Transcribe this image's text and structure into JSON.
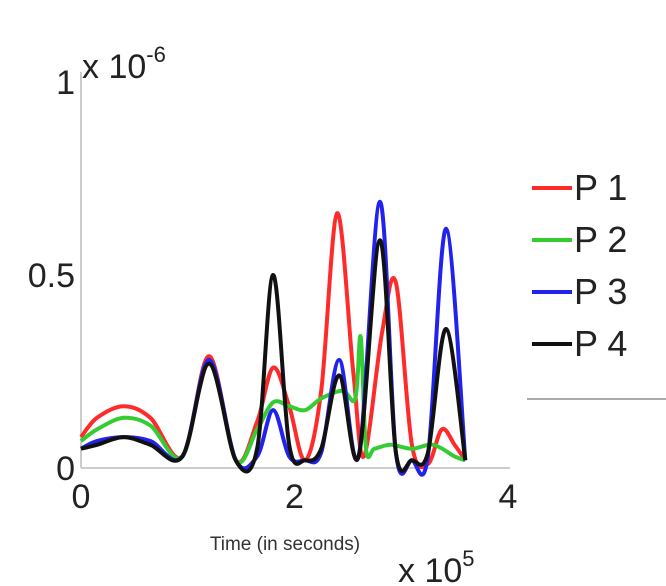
{
  "chart_data": {
    "type": "line",
    "xlabel": "Time (in seconds)",
    "ylabel": "",
    "x_multiplier": {
      "base": "x 10",
      "exp": "5"
    },
    "y_multiplier": {
      "base": "x 10",
      "exp": "-6"
    },
    "xlim": [
      0,
      4
    ],
    "ylim": [
      0,
      1
    ],
    "x_ticks": [
      {
        "value": 0,
        "label": "0"
      },
      {
        "value": 2,
        "label": "2"
      },
      {
        "value": 4,
        "label": "4"
      }
    ],
    "y_ticks": [
      {
        "value": 0,
        "label": "0"
      },
      {
        "value": 0.5,
        "label": "0.5"
      },
      {
        "value": 1,
        "label": "1"
      }
    ],
    "grid": false,
    "legend_position": "right",
    "series": [
      {
        "name": "P 1",
        "color": "#ff2b2b",
        "x": [
          0,
          0.15,
          0.4,
          0.65,
          0.95,
          1.2,
          1.45,
          1.65,
          1.8,
          1.95,
          2.1,
          2.25,
          2.4,
          2.55,
          2.65,
          2.82,
          2.95,
          3.1,
          3.25,
          3.38,
          3.5,
          3.6
        ],
        "y": [
          0.08,
          0.13,
          0.16,
          0.13,
          0.03,
          0.29,
          0.02,
          0.12,
          0.26,
          0.16,
          0.02,
          0.2,
          0.66,
          0.25,
          0.03,
          0.35,
          0.48,
          0.06,
          0.01,
          0.1,
          0.06,
          0.02
        ]
      },
      {
        "name": "P 2",
        "color": "#33cc33",
        "x": [
          0,
          0.15,
          0.4,
          0.65,
          0.95,
          1.2,
          1.45,
          1.65,
          1.8,
          1.95,
          2.1,
          2.25,
          2.45,
          2.57,
          2.62,
          2.67,
          2.75,
          2.9,
          3.1,
          3.3,
          3.5,
          3.6
        ],
        "y": [
          0.07,
          0.1,
          0.13,
          0.11,
          0.03,
          0.28,
          0.02,
          0.1,
          0.17,
          0.16,
          0.15,
          0.18,
          0.2,
          0.18,
          0.34,
          0.05,
          0.05,
          0.06,
          0.05,
          0.06,
          0.03,
          0.02
        ]
      },
      {
        "name": "P 3",
        "color": "#2222ee",
        "x": [
          0,
          0.15,
          0.4,
          0.65,
          0.95,
          1.2,
          1.45,
          1.65,
          1.8,
          1.95,
          2.1,
          2.25,
          2.42,
          2.6,
          2.8,
          2.95,
          3.1,
          3.25,
          3.42,
          3.6
        ],
        "y": [
          0.05,
          0.07,
          0.08,
          0.07,
          0.03,
          0.28,
          0.02,
          0.03,
          0.15,
          0.03,
          0.02,
          0.04,
          0.28,
          0.03,
          0.69,
          0.04,
          0.02,
          0.03,
          0.62,
          0.02
        ]
      },
      {
        "name": "P 4",
        "color": "#111111",
        "x": [
          0,
          0.15,
          0.4,
          0.65,
          0.95,
          1.2,
          1.45,
          1.65,
          1.8,
          1.95,
          2.1,
          2.25,
          2.42,
          2.6,
          2.8,
          2.95,
          3.1,
          3.25,
          3.42,
          3.6
        ],
        "y": [
          0.05,
          0.06,
          0.08,
          0.06,
          0.03,
          0.27,
          0.02,
          0.05,
          0.5,
          0.06,
          0.02,
          0.05,
          0.24,
          0.03,
          0.59,
          0.04,
          0.02,
          0.04,
          0.36,
          0.02
        ]
      }
    ]
  }
}
